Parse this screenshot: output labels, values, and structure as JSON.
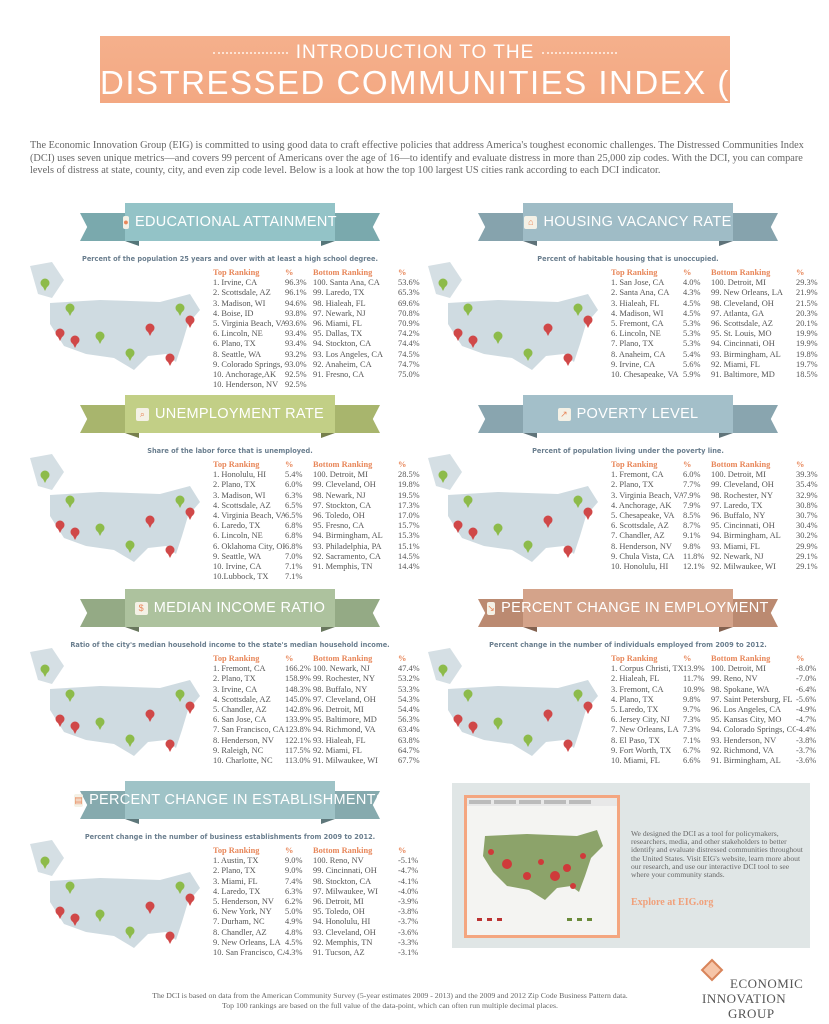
{
  "header": {
    "line1": "INTRODUCTION TO THE",
    "line2": "DISTRESSED COMMUNITIES INDEX (DCI)",
    "color": "#f4ab86"
  },
  "intro": "The Economic Innovation Group (EIG) is committed to using good data to craft effective policies that address America's toughest economic challenges. The Distressed Communities Index (DCI) uses seven unique metrics—and covers 99 percent of Americans over the age of 16—to identify and evaluate distress in more than 25,000 zip codes. With the DCI, you can compare levels of distress at state, county, city, and even zip code level.  Below is a look at how the top 100 largest US cities rank according to each DCI indicator.",
  "sections": [
    {
      "title": "EDUCATIONAL ATTAINMENT",
      "icon": "diploma-icon",
      "color": "#93c3c7",
      "dark": "#7aa9ad",
      "subtitle": "Percent of the population 25 years and over with at least a high school degree.",
      "top_label": "Top Ranking",
      "bottom_label": "Bottom Ranking",
      "pct_label": "%",
      "top": [
        [
          "1. Irvine, CA",
          "96.3%"
        ],
        [
          "2. Scottsdale, AZ",
          "96.1%"
        ],
        [
          "3. Madison, WI",
          "94.6%"
        ],
        [
          "4. Boise, ID",
          "93.8%"
        ],
        [
          "5. Virginia Beach, VA",
          "93.6%"
        ],
        [
          "6. Lincoln, NE",
          "93.4%"
        ],
        [
          "6. Plano, TX",
          "93.4%"
        ],
        [
          "8. Seattle, WA",
          "93.2%"
        ],
        [
          "9. Colorado Springs, CO",
          "93.0%"
        ],
        [
          "10. Anchorage,AK",
          "92.5%"
        ],
        [
          "10. Henderson, NV",
          "92.5%"
        ]
      ],
      "bottom": [
        [
          "100. Santa Ana, CA",
          "53.6%"
        ],
        [
          "99. Laredo, TX",
          "65.3%"
        ],
        [
          "98. Hialeah, FL",
          "69.6%"
        ],
        [
          "97.  Newark, NJ",
          "70.8%"
        ],
        [
          "96. Miami, FL",
          "70.9%"
        ],
        [
          "95. Dallas, TX",
          "74.2%"
        ],
        [
          "94. Stockton, CA",
          "74.4%"
        ],
        [
          "93. Los Angeles, CA",
          "74.5%"
        ],
        [
          "92. Anaheim, CA",
          "74.7%"
        ],
        [
          "91. Fresno, CA",
          "75.0%"
        ]
      ]
    },
    {
      "title": "HOUSING VACANCY RATE",
      "icon": "house-icon",
      "color": "#9fbcc6",
      "dark": "#86a3ad",
      "subtitle": "Percent of habitable housing that is unoccupied.",
      "top_label": "Top Ranking",
      "bottom_label": "Bottom Ranking",
      "pct_label": "%",
      "top": [
        [
          "1. San Jose, CA",
          "4.0%"
        ],
        [
          "2. Santa Ana, CA",
          "4.3%"
        ],
        [
          "3. Hialeah, FL",
          "4.5%"
        ],
        [
          "4. Madison, WI",
          "4.5%"
        ],
        [
          "5. Fremont, CA",
          "5.3%"
        ],
        [
          "6. Lincoln, NE",
          "5.3%"
        ],
        [
          "7. Plano, TX",
          "5.3%"
        ],
        [
          "8. Anaheim, CA",
          "5.4%"
        ],
        [
          "9. Irvine, CA",
          "5.6%"
        ],
        [
          "10. Chesapeake, VA",
          "5.9%"
        ]
      ],
      "bottom": [
        [
          "100. Detroit, MI",
          "29.3%"
        ],
        [
          "99. New Orleans, LA",
          "21.9%"
        ],
        [
          "98. Cleveland, OH",
          "21.5%"
        ],
        [
          "97. Atlanta, GA",
          "20.3%"
        ],
        [
          "96. Scottsdale, AZ",
          "20.1%"
        ],
        [
          "95. St. Louis, MO",
          "19.9%"
        ],
        [
          "94. Cincinnati, OH",
          "19.9%"
        ],
        [
          "93. Birmingham, AL",
          "19.8%"
        ],
        [
          "92. Miami, FL",
          "19.7%"
        ],
        [
          "91. Baltimore, MD",
          "18.5%"
        ]
      ]
    },
    {
      "title": "UNEMPLOYMENT RATE",
      "icon": "magnifier-chart-icon",
      "color": "#c2cf86",
      "dark": "#a8b56d",
      "subtitle": "Share of the labor force that is unemployed.",
      "top_label": "Top Ranking",
      "bottom_label": "Bottom Ranking",
      "pct_label": "%",
      "top": [
        [
          "1. Honolulu, HI",
          "5.4%"
        ],
        [
          "2. Plano, TX",
          "6.0%"
        ],
        [
          "3. Madison, WI",
          "6.3%"
        ],
        [
          "4. Scottsdale, AZ",
          "6.5%"
        ],
        [
          "4. Virginia Beach, VA",
          "6.5%"
        ],
        [
          "6. Laredo, TX",
          "6.8%"
        ],
        [
          "6. Lincoln, NE",
          "6.8%"
        ],
        [
          "6. Oklahoma City, OK",
          "6.8%"
        ],
        [
          "9. Seattle, WA",
          "7.0%"
        ],
        [
          "10. Irvine, CA",
          "7.1%"
        ],
        [
          "10.Lubbock, TX",
          "7.1%"
        ]
      ],
      "bottom": [
        [
          "100. Detroit, MI",
          "28.5%"
        ],
        [
          "99. Cleveland, OH",
          "19.8%"
        ],
        [
          "98. Newark, NJ",
          "19.5%"
        ],
        [
          "97. Stockton, CA",
          "17.3%"
        ],
        [
          "96. Toledo, OH",
          "17.0%"
        ],
        [
          "95. Fresno, CA",
          "15.7%"
        ],
        [
          "94. Birmingham, AL",
          "15.3%"
        ],
        [
          "93. Philadelphia, PA",
          "15.1%"
        ],
        [
          "92. Sacramento, CA",
          "14.5%"
        ],
        [
          "91. Memphis, TN",
          "14.4%"
        ]
      ]
    },
    {
      "title": "POVERTY LEVEL",
      "icon": "chart-icon",
      "color": "#a3bfc9",
      "dark": "#89a5af",
      "subtitle": "Percent of population living under the poverty line.",
      "top_label": "Top Ranking",
      "bottom_label": "Bottom Ranking",
      "pct_label": "%",
      "top": [
        [
          "1. Fremont, CA",
          "6.0%"
        ],
        [
          "2. Plano, TX",
          "7.7%"
        ],
        [
          "3. Virginia Beach, VA",
          "7.9%"
        ],
        [
          "4. Anchorage, AK",
          "7.9%"
        ],
        [
          "5. Chesapeake, VA",
          "8.5%"
        ],
        [
          "6. Scottsdale, AZ",
          "8.7%"
        ],
        [
          "7. Chandler, AZ",
          "9.1%"
        ],
        [
          "8. Henderson, NV",
          "9.8%"
        ],
        [
          "9. Chula Vista, CA",
          "11.8%"
        ],
        [
          "10. Honolulu, HI",
          "12.1%"
        ]
      ],
      "bottom": [
        [
          "100. Detroit, MI",
          "39.3%"
        ],
        [
          "99. Cleveland, OH",
          "35.4%"
        ],
        [
          "98. Rochester, NY",
          "32.9%"
        ],
        [
          "97. Laredo, TX",
          "30.8%"
        ],
        [
          "96. Buffalo, NY",
          "30.7%"
        ],
        [
          "95. Cincinnati, OH",
          "30.4%"
        ],
        [
          "94. Birmingham, AL",
          "30.2%"
        ],
        [
          "93. Miami, FL",
          "29.9%"
        ],
        [
          "92. Newark, NJ",
          "29.1%"
        ],
        [
          "92. Milwaukee, WI",
          "29.1%"
        ]
      ]
    },
    {
      "title": "MEDIAN INCOME RATIO",
      "icon": "money-icon",
      "color": "#adc29e",
      "dark": "#94aa85",
      "subtitle": "Ratio of the city's median household income to the state's median household income.",
      "top_label": "Top Ranking",
      "bottom_label": "Bottom Ranking",
      "pct_label": "%",
      "top": [
        [
          "1. Fremont, CA",
          "166.2%"
        ],
        [
          "2. Plano, TX",
          "158.9%"
        ],
        [
          "3. Irvine, CA",
          "148.3%"
        ],
        [
          "4. Scottsdale, AZ",
          "145.0%"
        ],
        [
          "5. Chandler, AZ",
          "142.8%"
        ],
        [
          "6. San Jose, CA",
          "133.9%"
        ],
        [
          "7. San Francisco, CA",
          "123.8%"
        ],
        [
          "8. Henderson, NV",
          "122.1%"
        ],
        [
          "9. Raleigh, NC",
          "117.5%"
        ],
        [
          "10. Charlotte, NC",
          "113.0%"
        ]
      ],
      "bottom": [
        [
          "100. Newark, NJ",
          "47.4%"
        ],
        [
          "99. Rochester, NY",
          "53.2%"
        ],
        [
          "98. Buffalo, NY",
          "53.3%"
        ],
        [
          "97. Cleveland, OH",
          "54.3%"
        ],
        [
          "96. Detroit, MI",
          "54.4%"
        ],
        [
          "95. Baltimore, MD",
          "56.3%"
        ],
        [
          "94. Richmond, VA",
          "63.4%"
        ],
        [
          "93. Hialeah, FL",
          "63.8%"
        ],
        [
          "92. Miami, FL",
          "64.7%"
        ],
        [
          "91. Milwaukee, WI",
          "67.7%"
        ]
      ]
    },
    {
      "title": "PERCENT CHANGE IN EMPLOYMENT",
      "icon": "trend-down-icon",
      "color": "#d4a38a",
      "dark": "#bb8a71",
      "subtitle": "Percent change in the number of individuals employed from 2009 to 2012.",
      "top_label": "Top Ranking",
      "bottom_label": "Bottom Ranking",
      "pct_label": "%",
      "top": [
        [
          "1. Corpus Christi, TX",
          "13.9%"
        ],
        [
          "2. Hialeah, FL",
          "11.7%"
        ],
        [
          "3. Fremont, CA",
          "10.9%"
        ],
        [
          "4. Plano, TX",
          "9.8%"
        ],
        [
          "5. Laredo, TX",
          "9.7%"
        ],
        [
          "6. Jersey City, NJ",
          "7.3%"
        ],
        [
          "7. New Orleans, LA",
          "7.3%"
        ],
        [
          "8. El Paso, TX",
          "7.1%"
        ],
        [
          "9. Fort Worth, TX",
          "6.7%"
        ],
        [
          "10. Miami, FL",
          "6.6%"
        ]
      ],
      "bottom": [
        [
          "100. Detroit, MI",
          "-8.0%"
        ],
        [
          "99. Reno, NV",
          "-7.0%"
        ],
        [
          "98. Spokane, WA",
          "-6.4%"
        ],
        [
          "97. Saint Petersburg, FL",
          "-5.6%"
        ],
        [
          "96. Los Angeles, CA",
          "-4.9%"
        ],
        [
          "95. Kansas City, MO",
          "-4.7%"
        ],
        [
          "94. Colorado Springs, CO",
          "-4.4%"
        ],
        [
          "93. Henderson, NV",
          "-3.8%"
        ],
        [
          "92. Richmond, VA",
          "-3.7%"
        ],
        [
          "91. Birmingham, AL",
          "-3.6%"
        ]
      ]
    },
    {
      "title": "PERCENT CHANGE IN ESTABLISHMENTS",
      "icon": "storefront-icon",
      "color": "#9fc3c7",
      "dark": "#86aaae",
      "subtitle": "Percent change in the number of business establishments from 2009 to 2012.",
      "top_label": "Top Ranking",
      "bottom_label": "Bottom Ranking",
      "pct_label": "%",
      "top": [
        [
          "1. Austin, TX",
          "9.0%"
        ],
        [
          "2. Plano, TX",
          "9.0%"
        ],
        [
          "3. Miami, FL",
          "7.4%"
        ],
        [
          "4. Laredo, TX",
          "6.3%"
        ],
        [
          "5. Henderson, NV",
          "6.2%"
        ],
        [
          "6. New York, NY",
          "5.0%"
        ],
        [
          "7. Durham, NC",
          "4.9%"
        ],
        [
          "8. Chandler, AZ",
          "4.8%"
        ],
        [
          "9. New Orleans, LA",
          "4.5%"
        ],
        [
          "10. San Francisco, CA",
          "4.3%"
        ]
      ],
      "bottom": [
        [
          "100. Reno, NV",
          "-5.1%"
        ],
        [
          "99. Cincinnati, OH",
          "-4.7%"
        ],
        [
          "98. Stockton, CA",
          "-4.1%"
        ],
        [
          "97. Milwaukee, WI",
          "-4.0%"
        ],
        [
          "96. Detroit, MI",
          "-3.9%"
        ],
        [
          "95. Toledo, OH",
          "-3.8%"
        ],
        [
          "94. Honolulu, HI",
          "-3.7%"
        ],
        [
          "93. Cleveland, OH",
          "-3.6%"
        ],
        [
          "92. Memphis, TN",
          "-3.3%"
        ],
        [
          "91. Tucson, AZ",
          "-3.1%"
        ]
      ]
    }
  ],
  "explore": {
    "text": "We designed the DCI as a tool for policymakers, researchers, media, and other stakeholders to better identify and evaluate distressed communities throughout the United States. Visit EIG's website, learn more about our research, and use our interactive DCI tool to see where your community stands.",
    "link": "Explore at EIG.org",
    "accent": "#f0a07a"
  },
  "footer": {
    "line1": "The DCI is based on data from the American Community Survey (5-year estimates 2009 - 2013) and the 2009 and 2012 Zip Code Business Pattern data.",
    "line2": "Top 100 rankings are based on the full value of the data-point, which can often run multiple decimal places."
  },
  "logo": {
    "line1": "ECONOMIC",
    "line2": "INNOVATION",
    "line3": "GROUP"
  }
}
